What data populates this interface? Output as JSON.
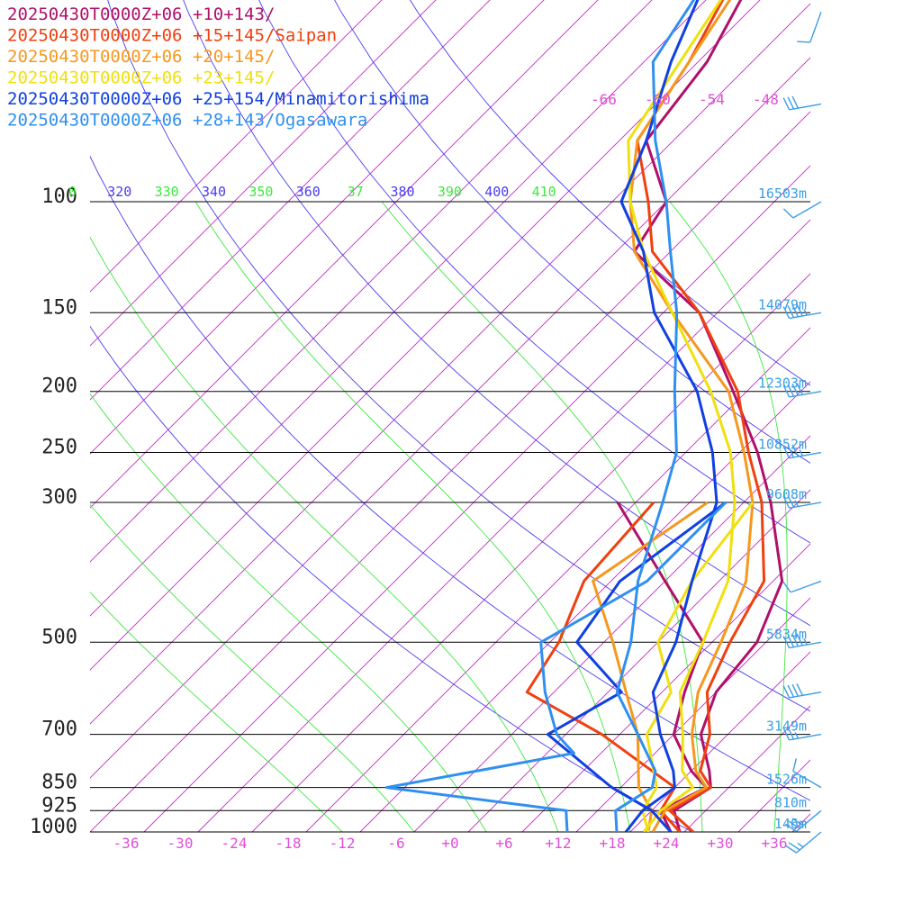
{
  "colors": {
    "isotherm": "#d020d0",
    "dry_adiabat": "#4a3cf0",
    "moist_adiabat": "#3fe83f",
    "isobar": "#000000",
    "height_label": "#3b9ee6",
    "temp_label": "#e04fd8",
    "wind_barb": "#3b9ee6"
  },
  "chart_data": {
    "type": "line",
    "title": "",
    "xlabel": "",
    "ylabel": "",
    "xlim": [
      -40,
      40
    ],
    "ylim_hpa": [
      1000,
      45
    ],
    "y_scale": "log",
    "pressure_ticks": [
      {
        "p": 100,
        "label": "100",
        "height": "16503m"
      },
      {
        "p": 150,
        "label": "150",
        "height": "14079m"
      },
      {
        "p": 200,
        "label": "200",
        "height": "12303m"
      },
      {
        "p": 250,
        "label": "250",
        "height": "10852m"
      },
      {
        "p": 300,
        "label": "300",
        "height": "9608m"
      },
      {
        "p": 500,
        "label": "500",
        "height": "5834m"
      },
      {
        "p": 700,
        "label": "700",
        "height": "3149m"
      },
      {
        "p": 850,
        "label": "850",
        "height": "1526m"
      },
      {
        "p": 925,
        "label": "925",
        "height": "810m"
      },
      {
        "p": 1000,
        "label": "1000",
        "height": "146m"
      }
    ],
    "temp_ticks": [
      {
        "t": -36,
        "label": "-36"
      },
      {
        "t": -30,
        "label": "-30"
      },
      {
        "t": -24,
        "label": "-24"
      },
      {
        "t": -18,
        "label": "-18"
      },
      {
        "t": -12,
        "label": "-12"
      },
      {
        "t": -6,
        "label": "-6"
      },
      {
        "t": 0,
        "label": "+0"
      },
      {
        "t": 6,
        "label": "+6"
      },
      {
        "t": 12,
        "label": "+12"
      },
      {
        "t": 18,
        "label": "+18"
      },
      {
        "t": 24,
        "label": "+24"
      },
      {
        "t": 30,
        "label": "+30"
      },
      {
        "t": 36,
        "label": "+36"
      }
    ],
    "upper_temp_labels": [
      {
        "t": -66,
        "label": "-66"
      },
      {
        "t": -60,
        "label": "-60"
      },
      {
        "t": -54,
        "label": "-54"
      },
      {
        "t": -48,
        "label": "-48"
      }
    ],
    "theta_labels": [
      {
        "th": 310,
        "label": "0",
        "kind": "moist"
      },
      {
        "th": 320,
        "label": "320",
        "kind": "dry"
      },
      {
        "th": 330,
        "label": "330",
        "kind": "moist"
      },
      {
        "th": 340,
        "label": "340",
        "kind": "dry"
      },
      {
        "th": 350,
        "label": "350",
        "kind": "moist"
      },
      {
        "th": 360,
        "label": "360",
        "kind": "dry"
      },
      {
        "th": 370,
        "label": "37",
        "kind": "moist"
      },
      {
        "th": 380,
        "label": "380",
        "kind": "dry"
      },
      {
        "th": 390,
        "label": "390",
        "kind": "moist"
      },
      {
        "th": 400,
        "label": "400",
        "kind": "dry"
      },
      {
        "th": 410,
        "label": "410",
        "kind": "moist"
      }
    ],
    "series": [
      {
        "name": "20250430T0000Z+06 +10+143/",
        "color": "#b0106a",
        "temp": [
          [
            1000,
            25.5
          ],
          [
            925,
            22.5
          ],
          [
            850,
            24
          ],
          [
            800,
            22
          ],
          [
            700,
            17
          ],
          [
            600,
            14
          ],
          [
            500,
            13
          ],
          [
            400,
            9
          ],
          [
            300,
            -1
          ],
          [
            250,
            -8
          ],
          [
            200,
            -17.5
          ],
          [
            150,
            -30
          ],
          [
            120,
            -44
          ],
          [
            100,
            -46
          ],
          [
            80,
            -55
          ],
          [
            60,
            -57
          ],
          [
            45,
            -61
          ]
        ],
        "dewpt": [
          [
            1000,
            24.5
          ],
          [
            925,
            21
          ],
          [
            850,
            23.5
          ],
          [
            800,
            20
          ],
          [
            700,
            14
          ],
          [
            600,
            10.5
          ],
          [
            500,
            7
          ],
          [
            400,
            -4
          ],
          [
            300,
            -18
          ]
        ]
      },
      {
        "name": "20250430T0000Z+06 +15+145/Saipan",
        "color": "#f04010",
        "temp": [
          [
            1000,
            27
          ],
          [
            925,
            22
          ],
          [
            850,
            24
          ],
          [
            800,
            21
          ],
          [
            700,
            18
          ],
          [
            600,
            13
          ],
          [
            500,
            10
          ],
          [
            400,
            7
          ],
          [
            300,
            -2
          ],
          [
            250,
            -9
          ],
          [
            200,
            -17
          ],
          [
            150,
            -30
          ],
          [
            120,
            -42
          ],
          [
            100,
            -48
          ],
          [
            80,
            -56
          ],
          [
            60,
            -59
          ],
          [
            45,
            -63
          ]
        ],
        "dewpt": [
          [
            1000,
            25.5
          ],
          [
            925,
            21
          ],
          [
            850,
            20
          ],
          [
            700,
            6
          ],
          [
            600,
            -7
          ],
          [
            500,
            -9
          ],
          [
            400,
            -13
          ],
          [
            300,
            -14
          ]
        ]
      },
      {
        "name": "20250430T0000Z+06 +20+145/",
        "color": "#f5981e",
        "temp": [
          [
            1000,
            22.5
          ],
          [
            925,
            21.5
          ],
          [
            850,
            23.5
          ],
          [
            800,
            20.5
          ],
          [
            700,
            16
          ],
          [
            600,
            12
          ],
          [
            500,
            9
          ],
          [
            400,
            5
          ],
          [
            300,
            -3
          ],
          [
            250,
            -9.5
          ],
          [
            200,
            -18
          ],
          [
            150,
            -33
          ],
          [
            120,
            -44
          ],
          [
            100,
            -50
          ],
          [
            80,
            -56
          ],
          [
            60,
            -59
          ],
          [
            45,
            -62
          ]
        ],
        "dewpt": [
          [
            1000,
            22
          ],
          [
            925,
            20
          ],
          [
            850,
            16
          ],
          [
            700,
            10
          ],
          [
            600,
            4
          ],
          [
            500,
            -3
          ],
          [
            400,
            -12
          ],
          [
            300,
            -8
          ]
        ]
      },
      {
        "name": "20250430T0000Z+06 +23+145/",
        "color": "#f0e010",
        "temp": [
          [
            1000,
            21.5
          ],
          [
            925,
            21
          ],
          [
            850,
            22
          ],
          [
            800,
            19
          ],
          [
            700,
            15
          ],
          [
            600,
            10
          ],
          [
            500,
            7
          ],
          [
            400,
            3
          ],
          [
            300,
            -5
          ],
          [
            250,
            -11
          ],
          [
            200,
            -20
          ],
          [
            150,
            -33
          ],
          [
            120,
            -43
          ],
          [
            100,
            -50
          ],
          [
            80,
            -57
          ],
          [
            60,
            -60
          ],
          [
            45,
            -63
          ]
        ],
        "dewpt": [
          [
            1000,
            22
          ],
          [
            925,
            19
          ],
          [
            850,
            18
          ],
          [
            700,
            11
          ],
          [
            600,
            9
          ],
          [
            500,
            2
          ],
          [
            400,
            -1
          ],
          [
            300,
            -3
          ]
        ]
      },
      {
        "name": "20250430T0000Z+06 +25+154/Minamitorishima",
        "color": "#1040e0",
        "temp": [
          [
            1000,
            19.5
          ],
          [
            925,
            19
          ],
          [
            850,
            20
          ],
          [
            800,
            18
          ],
          [
            700,
            12.5
          ],
          [
            600,
            7
          ],
          [
            500,
            4
          ],
          [
            400,
            -1
          ],
          [
            300,
            -7
          ],
          [
            250,
            -13
          ],
          [
            200,
            -21.5
          ],
          [
            150,
            -35
          ],
          [
            120,
            -43
          ],
          [
            100,
            -51
          ],
          [
            80,
            -55
          ],
          [
            60,
            -61
          ],
          [
            45,
            -66
          ]
        ],
        "dewpt": [
          [
            1000,
            24.5
          ],
          [
            925,
            20
          ],
          [
            850,
            13
          ],
          [
            700,
            0
          ],
          [
            600,
            3.5
          ],
          [
            500,
            -7
          ],
          [
            400,
            -9
          ],
          [
            300,
            -6
          ]
        ]
      },
      {
        "name": "20250430T0000Z+06 +28+143/Ogasawara",
        "color": "#3090f0",
        "temp": [
          [
            1000,
            18.5
          ],
          [
            925,
            16
          ],
          [
            850,
            17.5
          ],
          [
            800,
            16
          ],
          [
            700,
            10
          ],
          [
            600,
            3
          ],
          [
            500,
            -1
          ],
          [
            400,
            -7
          ],
          [
            300,
            -13
          ],
          [
            250,
            -17
          ],
          [
            200,
            -24
          ],
          [
            150,
            -32.5
          ],
          [
            120,
            -40
          ],
          [
            100,
            -46
          ],
          [
            80,
            -54
          ],
          [
            60,
            -63
          ],
          [
            45,
            -66
          ]
        ],
        "dewpt": [
          [
            1000,
            13
          ],
          [
            925,
            10.5
          ],
          [
            850,
            -12
          ],
          [
            750,
            5
          ],
          [
            700,
            1
          ],
          [
            600,
            -5
          ],
          [
            500,
            -11
          ],
          [
            400,
            -6
          ],
          [
            300,
            -6
          ]
        ]
      }
    ],
    "wind_barbs": [
      {
        "p": 1000,
        "dir": 230,
        "speed": 25
      },
      {
        "p": 925,
        "dir": 230,
        "speed": 30
      },
      {
        "p": 850,
        "dir": 300,
        "speed": 10
      },
      {
        "p": 700,
        "dir": 260,
        "speed": 25
      },
      {
        "p": 600,
        "dir": 260,
        "speed": 40
      },
      {
        "p": 500,
        "dir": 260,
        "speed": 45
      },
      {
        "p": 400,
        "dir": 250,
        "speed": 10
      },
      {
        "p": 300,
        "dir": 260,
        "speed": 25
      },
      {
        "p": 250,
        "dir": 260,
        "speed": 35
      },
      {
        "p": 200,
        "dir": 260,
        "speed": 40
      },
      {
        "p": 150,
        "dir": 260,
        "speed": 45
      },
      {
        "p": 100,
        "dir": 240,
        "speed": 10
      },
      {
        "p": 70,
        "dir": 260,
        "speed": 30
      },
      {
        "p": 50,
        "dir": 200,
        "speed": 10
      }
    ]
  }
}
